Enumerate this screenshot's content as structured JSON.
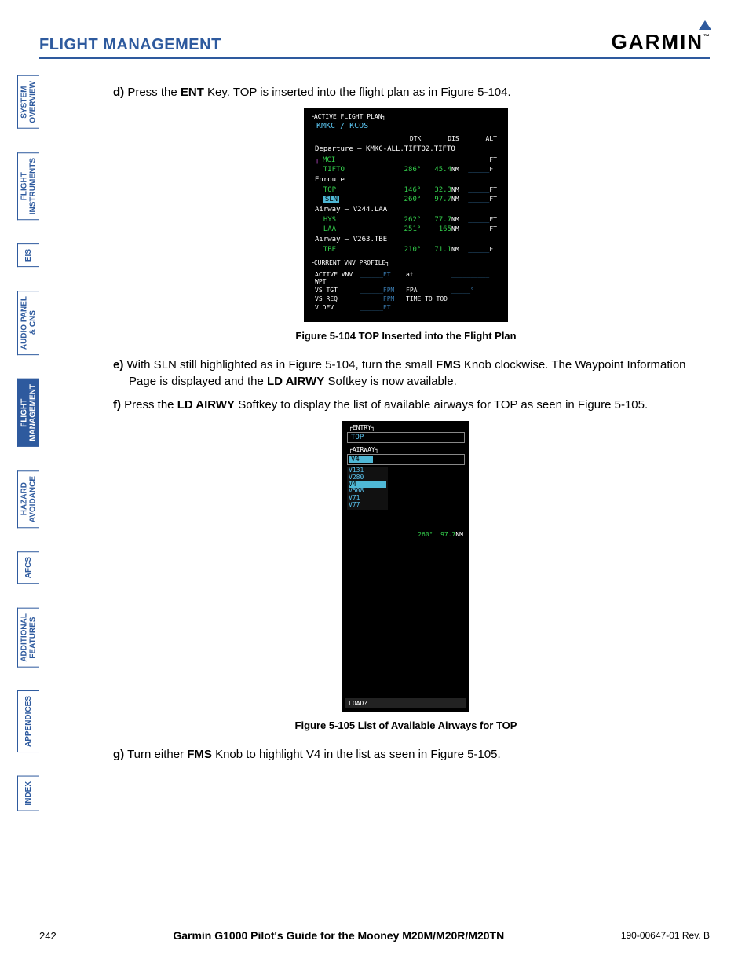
{
  "header": {
    "section_title": "FLIGHT MANAGEMENT",
    "brand": "GARMIN",
    "tm": "™"
  },
  "tabs": [
    {
      "l1": "SYSTEM",
      "l2": "OVERVIEW",
      "active": false
    },
    {
      "l1": "FLIGHT",
      "l2": "INSTRUMENTS",
      "active": false
    },
    {
      "l1": "EIS",
      "l2": "",
      "active": false
    },
    {
      "l1": "AUDIO PANEL",
      "l2": "& CNS",
      "active": false
    },
    {
      "l1": "FLIGHT",
      "l2": "MANAGEMENT",
      "active": true
    },
    {
      "l1": "HAZARD",
      "l2": "AVOIDANCE",
      "active": false
    },
    {
      "l1": "AFCS",
      "l2": "",
      "active": false
    },
    {
      "l1": "ADDITIONAL",
      "l2": "FEATURES",
      "active": false
    },
    {
      "l1": "APPENDICES",
      "l2": "",
      "active": false
    },
    {
      "l1": "INDEX",
      "l2": "",
      "active": false
    }
  ],
  "steps": {
    "d": {
      "letter": "d)",
      "pre": "Press the ",
      "bold": "ENT",
      "post": " Key.  TOP is inserted into the flight plan as in Figure 5-104."
    },
    "e": {
      "letter": "e)",
      "pre": "With SLN still highlighted as in Figure 5-104, turn the small ",
      "bold1": "FMS",
      "mid": " Knob clockwise.  The Waypoint Information Page is displayed and the ",
      "bold2": "LD AIRWY",
      "post": " Softkey is now available."
    },
    "f": {
      "letter": "f)",
      "pre": " Press the ",
      "bold": "LD AIRWY",
      "post": " Softkey to display the list of available airways for TOP as seen in Figure 5-105."
    },
    "g": {
      "letter": "g)",
      "pre": "Turn either ",
      "bold": "FMS",
      "post": " Knob to highlight V4 in the list as seen in Figure 5-105."
    }
  },
  "captions": {
    "fig104": "Figure 5-104  TOP Inserted into the Flight Plan",
    "fig105": "Figure 5-105  List of Available Airways for TOP"
  },
  "avionics1": {
    "title": "ACTIVE FLIGHT PLAN",
    "route": "KMKC / KCOS",
    "cols": [
      "",
      "DTK",
      "DIS",
      "ALT"
    ],
    "departure_label": "Departure – KMKC-ALL.TIFTO2.TIFTO",
    "rows": [
      {
        "name": "MCI",
        "dtk": "",
        "dis": "",
        "alt": "_____",
        "unit": "FT",
        "arrow": true
      },
      {
        "name": "TIFTO",
        "dtk": "286°",
        "dis": "45.4",
        "disu": "NM",
        "alt": "_____",
        "unit": "FT"
      },
      {
        "name": "Enroute",
        "section": true
      },
      {
        "name": "TOP",
        "dtk": "146°",
        "dis": "32.3",
        "disu": "NM",
        "alt": "_____",
        "unit": "FT"
      },
      {
        "name": "SLN",
        "dtk": "260°",
        "dis": "97.7",
        "disu": "NM",
        "alt": "_____",
        "unit": "FT",
        "selected": true
      },
      {
        "name": "Airway – V244.LAA",
        "section": true
      },
      {
        "name": "HYS",
        "dtk": "262°",
        "dis": "77.7",
        "disu": "NM",
        "alt": "_____",
        "unit": "FT"
      },
      {
        "name": "LAA",
        "dtk": "251°",
        "dis": "165",
        "disu": "NM",
        "alt": "_____",
        "unit": "FT"
      },
      {
        "name": "Airway – V263.TBE",
        "section": true
      },
      {
        "name": "TBE",
        "dtk": "210°",
        "dis": "71.1",
        "disu": "NM",
        "alt": "_____",
        "unit": "FT"
      }
    ],
    "vnv_title": "CURRENT VNV PROFILE",
    "vnv": [
      {
        "l": "ACTIVE VNV WPT",
        "v1": "______FT",
        "l2": "at",
        "v2": "__________"
      },
      {
        "l": "VS TGT",
        "v1": "______FPM",
        "l2": "FPA",
        "v2": "_____°"
      },
      {
        "l": "VS REQ",
        "v1": "______FPM",
        "l2": "TIME TO TOD",
        "v2": "___"
      },
      {
        "l": "V DEV",
        "v1": "______FT",
        "l2": "",
        "v2": ""
      }
    ]
  },
  "avionics2": {
    "entry_label": "ENTRY",
    "entry": "TOP",
    "airway_label": "AIRWAY",
    "airway_sel": "V4",
    "options": [
      "V131",
      "V280",
      "V4",
      "V508",
      "V71",
      "V77"
    ],
    "hdg": "260°",
    "dist": "97.7",
    "dist_u": "NM",
    "load": "LOAD?"
  },
  "footer": {
    "page": "242",
    "center": "Garmin G1000 Pilot's Guide for the Mooney M20M/M20R/M20TN",
    "rev": "190-00647-01  Rev. B"
  }
}
